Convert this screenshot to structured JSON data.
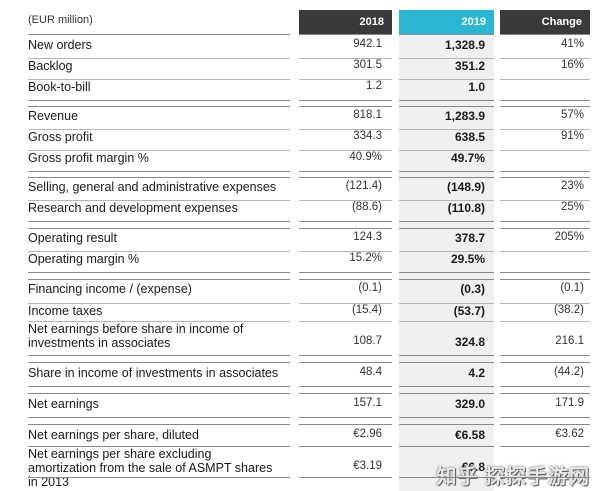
{
  "table": {
    "unit_label": "(EUR million)",
    "headers": {
      "y2018": "2018",
      "y2019": "2019",
      "change": "Change"
    },
    "rows": [
      {
        "label": "New orders",
        "v2018": "942.1",
        "v2019": "1,328.9",
        "change": "41%"
      },
      {
        "label": "Backlog",
        "v2018": "301.5",
        "v2019": "351.2",
        "change": "16%"
      },
      {
        "label": "Book-to-bill",
        "v2018": "1.2",
        "v2019": "1.0",
        "change": ""
      },
      {
        "label": "Revenue",
        "v2018": "818.1",
        "v2019": "1,283.9",
        "change": "57%"
      },
      {
        "label": "Gross profit",
        "v2018": "334.3",
        "v2019": "638.5",
        "change": "91%"
      },
      {
        "label": "Gross profit margin %",
        "v2018": "40.9%",
        "v2019": "49.7%",
        "change": ""
      },
      {
        "label": "Selling, general and administrative expenses",
        "v2018": "(121.4)",
        "v2019": "(148.9)",
        "change": "23%"
      },
      {
        "label": "Research and development expenses",
        "v2018": "(88.6)",
        "v2019": "(110.8)",
        "change": "25%"
      },
      {
        "label": "Operating result",
        "v2018": "124.3",
        "v2019": "378.7",
        "change": "205%"
      },
      {
        "label": "Operating margin %",
        "v2018": "15.2%",
        "v2019": "29.5%",
        "change": ""
      },
      {
        "label": "Financing income / (expense)",
        "v2018": "(0.1)",
        "v2019": "(0.3)",
        "change": "(0.1)"
      },
      {
        "label": "Income taxes",
        "v2018": "(15.4)",
        "v2019": "(53.7)",
        "change": "(38.2)"
      },
      {
        "label": "Net earnings before share in income of investments in associates",
        "v2018": "108.7",
        "v2019": "324.8",
        "change": "216.1"
      },
      {
        "label": "Share in income of investments in associates",
        "v2018": "48.4",
        "v2019": "4.2",
        "change": "(44.2)"
      },
      {
        "label": "Net earnings",
        "v2018": "157.1",
        "v2019": "329.0",
        "change": "171.9"
      },
      {
        "label": "Net earnings per share, diluted",
        "v2018": "€2.96",
        "v2019": "€6.58",
        "change": "€3.62"
      },
      {
        "label": "Net earnings per share excluding amortization from the sale of ASMPT shares in 2013",
        "v2018": "€3.19",
        "v2019": "€6.8",
        "change": ""
      }
    ]
  },
  "watermark": "知乎 探探手游网"
}
